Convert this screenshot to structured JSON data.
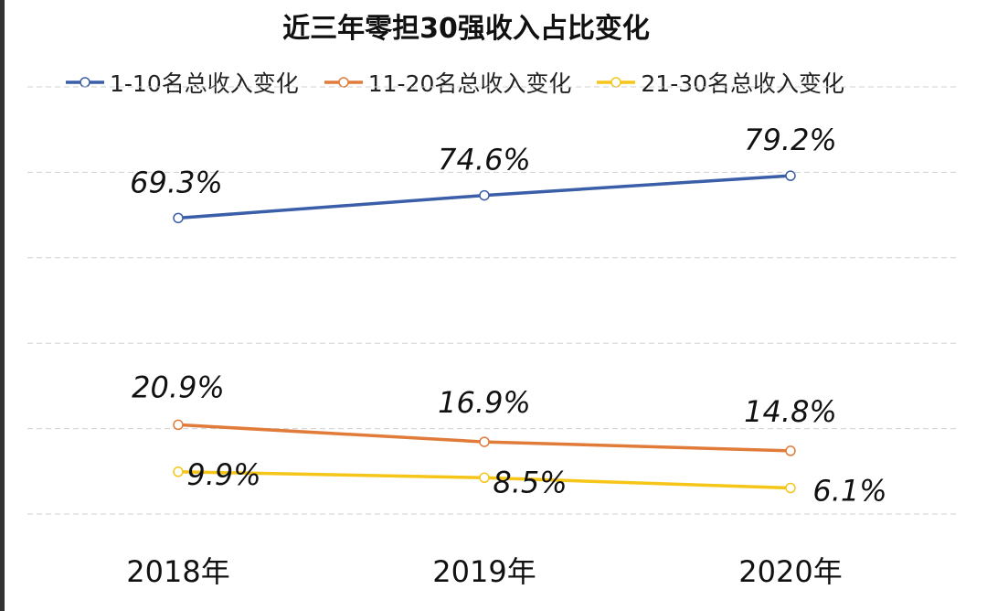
{
  "chart_data": {
    "type": "line",
    "title": "近三年零担30强收入占比变化",
    "categories": [
      "2018年",
      "2019年",
      "2020年"
    ],
    "series": [
      {
        "name": "1-10名总收入变化",
        "values": [
          69.3,
          74.6,
          79.2
        ],
        "labels": [
          "69.3%",
          "74.6%",
          "79.2%"
        ],
        "color": "#3a5ea8"
      },
      {
        "name": "11-20名总收入变化",
        "values": [
          20.9,
          16.9,
          14.8
        ],
        "labels": [
          "20.9%",
          "16.9%",
          "14.8%"
        ],
        "color": "#e07b39"
      },
      {
        "name": "21-30名总收入变化",
        "values": [
          9.9,
          8.5,
          6.1
        ],
        "labels": [
          "9.9%",
          "8.5%",
          "6.1%"
        ],
        "color": "#f5c518"
      }
    ],
    "ylim": [
      0,
      100
    ],
    "grid": true,
    "legend": "top",
    "unit": "%"
  }
}
